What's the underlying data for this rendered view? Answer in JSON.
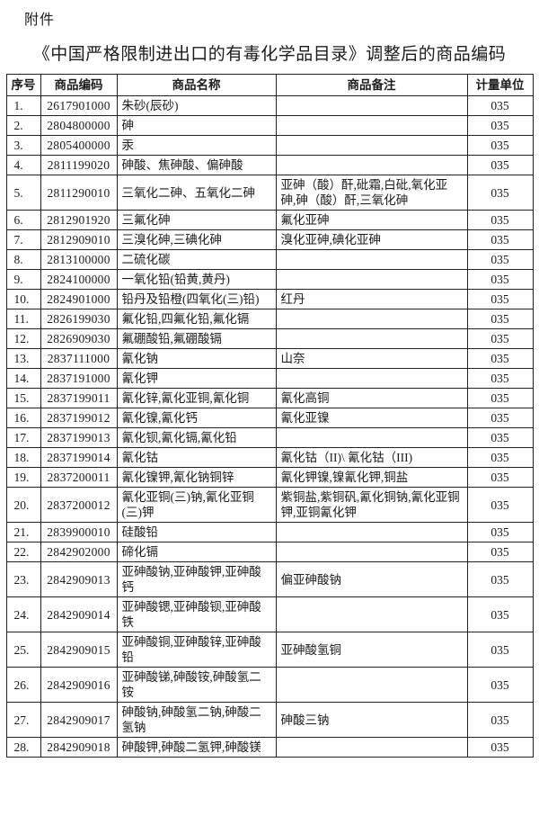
{
  "page": {
    "attachment_label": "附件",
    "title": "《中国严格限制进出口的有毒化学品目录》调整后的商品编码"
  },
  "table": {
    "headers": {
      "serial": "序号",
      "code": "商品编码",
      "name": "商品名称",
      "remark": "商品备注",
      "unit": "计量单位"
    },
    "rows": [
      {
        "no": "1.",
        "code": "2617901000",
        "name": "朱砂(辰砂)",
        "remark": "",
        "unit": "035"
      },
      {
        "no": "2.",
        "code": "2804800000",
        "name": "砷",
        "remark": "",
        "unit": "035"
      },
      {
        "no": "3.",
        "code": "2805400000",
        "name": "汞",
        "remark": "",
        "unit": "035"
      },
      {
        "no": "4.",
        "code": "2811199020",
        "name": "砷酸、焦砷酸、偏砷酸",
        "remark": "",
        "unit": "035"
      },
      {
        "no": "5.",
        "code": "2811290010",
        "name": "三氧化二砷、五氧化二砷",
        "remark": "亚砷（酸）酐,砒霜,白砒,氧化亚砷,砷（酸）酐,三氧化砷",
        "unit": "035"
      },
      {
        "no": "6.",
        "code": "2812901920",
        "name": "三氟化砷",
        "remark": "氟化亚砷",
        "unit": "035"
      },
      {
        "no": "7.",
        "code": "2812909010",
        "name": "三溴化砷,三碘化砷",
        "remark": "溴化亚砷,碘化亚砷",
        "unit": "035"
      },
      {
        "no": "8.",
        "code": "2813100000",
        "name": "二硫化碳",
        "remark": "",
        "unit": "035"
      },
      {
        "no": "9.",
        "code": "2824100000",
        "name": "一氧化铅(铅黄,黄丹)",
        "remark": "",
        "unit": "035"
      },
      {
        "no": "10.",
        "code": "2824901000",
        "name": "铅丹及铅橙(四氧化(三)铅)",
        "remark": "红丹",
        "unit": "035"
      },
      {
        "no": "11.",
        "code": "2826199030",
        "name": "氟化铅,四氟化铅,氟化镉",
        "remark": "",
        "unit": "035"
      },
      {
        "no": "12.",
        "code": "2826909030",
        "name": "氟硼酸铅,氟硼酸镉",
        "remark": "",
        "unit": "035"
      },
      {
        "no": "13.",
        "code": "2837111000",
        "name": "氰化钠",
        "remark": "山奈",
        "unit": "035"
      },
      {
        "no": "14.",
        "code": "2837191000",
        "name": "氰化钾",
        "remark": "",
        "unit": "035"
      },
      {
        "no": "15.",
        "code": "2837199011",
        "name": "氰化锌,氰化亚铜,氰化铜",
        "remark": "氰化高铜",
        "unit": "035"
      },
      {
        "no": "16.",
        "code": "2837199012",
        "name": "氰化镍,氰化钙",
        "remark": "氰化亚镍",
        "unit": "035"
      },
      {
        "no": "17.",
        "code": "2837199013",
        "name": "氰化钡,氰化镉,氰化铅",
        "remark": "",
        "unit": "035"
      },
      {
        "no": "18.",
        "code": "2837199014",
        "name": "氰化钴",
        "remark": "氰化钴（II)\\ 氰化钴（III)",
        "unit": "035"
      },
      {
        "no": "19.",
        "code": "2837200011",
        "name": "氰化镍钾,氰化钠铜锌",
        "remark": "氰化钾镍,镍氰化钾,铜盐",
        "unit": "035"
      },
      {
        "no": "20.",
        "code": "2837200012",
        "name": "氰化亚铜(三)钠,氰化亚铜(三)钾",
        "remark": "紫铜盐,紫铜矾,氰化铜钠,氰化亚铜钾,亚铜氰化钾",
        "unit": "035"
      },
      {
        "no": "21.",
        "code": "2839900010",
        "name": "硅酸铅",
        "remark": "",
        "unit": "035"
      },
      {
        "no": "22.",
        "code": "2842902000",
        "name": "碲化镉",
        "remark": "",
        "unit": "035"
      },
      {
        "no": "23.",
        "code": "2842909013",
        "name": "亚砷酸钠,亚砷酸钾,亚砷酸钙",
        "remark": "偏亚砷酸钠",
        "unit": "035"
      },
      {
        "no": "24.",
        "code": "2842909014",
        "name": "亚砷酸锶,亚砷酸钡,亚砷酸铁",
        "remark": "",
        "unit": "035"
      },
      {
        "no": "25.",
        "code": "2842909015",
        "name": "亚砷酸铜,亚砷酸锌,亚砷酸铅",
        "remark": "亚砷酸氢铜",
        "unit": "035"
      },
      {
        "no": "26.",
        "code": "2842909016",
        "name": "亚砷酸锑,砷酸铵,砷酸氢二铵",
        "remark": "",
        "unit": "035"
      },
      {
        "no": "27.",
        "code": "2842909017",
        "name": "砷酸钠,砷酸氢二钠,砷酸二氢钠",
        "remark": "砷酸三钠",
        "unit": "035"
      },
      {
        "no": "28.",
        "code": "2842909018",
        "name": "砷酸钾,砷酸二氢钾,砷酸镁",
        "remark": "",
        "unit": "035"
      }
    ]
  }
}
